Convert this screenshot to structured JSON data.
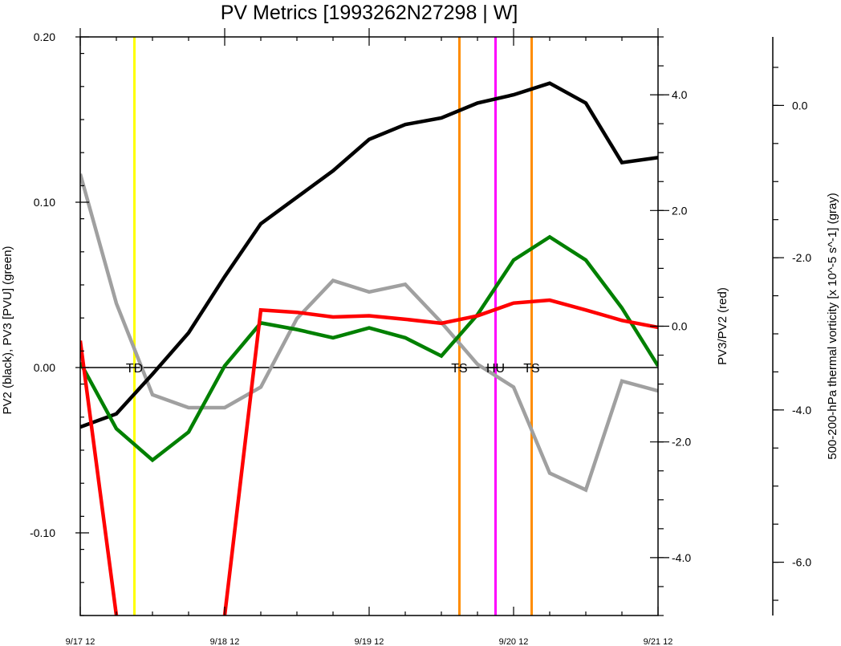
{
  "chart_data": {
    "type": "line",
    "title": "PV Metrics [1993262N27298 | W]",
    "x_tick_labels": [
      "9/17 12",
      "9/18 12",
      "9/19 12",
      "9/20 12",
      "9/21 12"
    ],
    "x_tick_hours": [
      0,
      24,
      48,
      72,
      96
    ],
    "x_range_hours": [
      0,
      96
    ],
    "time_step_hours": 6,
    "left_axis": {
      "label": "PV2 (black), PV3 [PVU] (green)",
      "range": [
        -0.15,
        0.2
      ],
      "tick_values": [
        -0.1,
        0.0,
        0.1,
        0.2
      ],
      "tick_labels": [
        "-0.10",
        "0.00",
        "0.10",
        "0.20"
      ]
    },
    "right_axis": {
      "label": "PV3/PV2 (red)",
      "range": [
        -5.0,
        5.0
      ],
      "tick_values": [
        -4.0,
        -2.0,
        0.0,
        2.0,
        4.0
      ],
      "tick_labels": [
        "-4.0",
        "-2.0",
        "0.0",
        "2.0",
        "4.0"
      ]
    },
    "far_right_axis": {
      "label": "500-200-hPa thermal vorticity [x 10^-5 s^-1] (gray)",
      "range": [
        -6.7,
        0.9
      ],
      "tick_values": [
        -6.0,
        -4.0,
        -2.0,
        0.0
      ],
      "tick_labels": [
        "-6.0",
        "-4.0",
        "-2.0",
        "0.0"
      ]
    },
    "series": [
      {
        "axis": "left",
        "color": "#000000",
        "values": [
          -0.036,
          -0.028,
          -0.004,
          0.021,
          0.055,
          0.087,
          0.103,
          0.119,
          0.138,
          0.147,
          0.151,
          0.16,
          0.165,
          0.172,
          0.16,
          0.124,
          0.127
        ]
      },
      {
        "axis": "left",
        "color": "#008000",
        "values": [
          0.003,
          -0.037,
          -0.056,
          -0.039,
          0.001,
          0.027,
          0.023,
          0.018,
          0.024,
          0.018,
          0.007,
          0.032,
          0.065,
          0.079,
          0.065,
          0.036,
          0.001
        ]
      },
      {
        "axis": "right",
        "color": "#ff0000",
        "values": [
          -0.25,
          -5.0,
          null,
          null,
          -5.0,
          0.28,
          0.24,
          0.16,
          0.18,
          0.12,
          0.05,
          0.18,
          0.4,
          0.45,
          0.28,
          0.1,
          -0.02
        ]
      },
      {
        "axis": "far_right",
        "color": "#a0a0a0",
        "values": [
          -0.9,
          -2.6,
          -3.8,
          -3.97,
          -3.97,
          -3.7,
          -2.8,
          -2.3,
          -2.45,
          -2.35,
          -2.85,
          -3.4,
          -3.7,
          -4.83,
          -5.05,
          -3.62,
          -3.75
        ]
      }
    ],
    "stage_markers": [
      {
        "label": "TD",
        "hour": 9,
        "color": "#ffff00"
      },
      {
        "label": "TS",
        "hour": 63,
        "color": "#ff8c00"
      },
      {
        "label": "HU",
        "hour": 69,
        "color": "#ff00ff"
      },
      {
        "label": "TS",
        "hour": 75,
        "color": "#ff8c00"
      }
    ],
    "zero_line": true,
    "grid": false,
    "legend": "none"
  }
}
